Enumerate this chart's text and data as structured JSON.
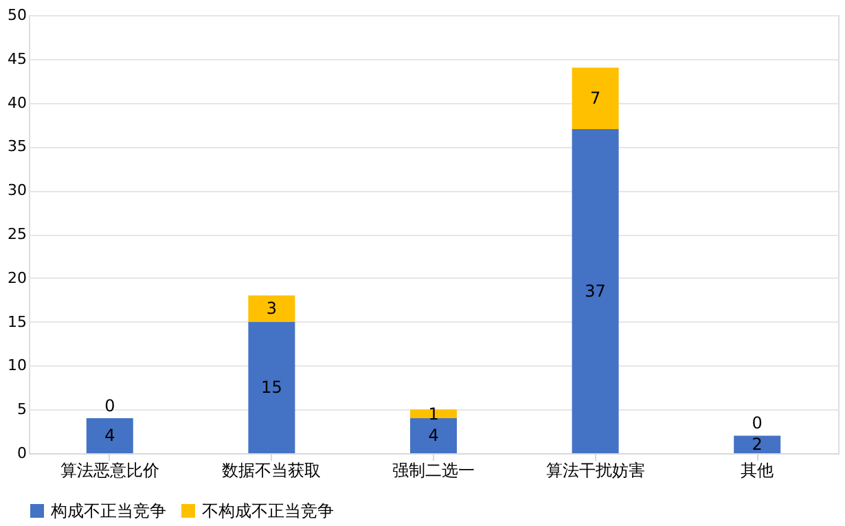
{
  "chart_data": {
    "type": "bar",
    "stacked": true,
    "categories": [
      "算法恶意比价",
      "数据不当获取",
      "强制二选一",
      "算法干扰妨害",
      "其他"
    ],
    "series": [
      {
        "name": "构成不正当竞争",
        "color": "#4472c4",
        "values": [
          4,
          15,
          4,
          37,
          2
        ]
      },
      {
        "name": "不构成不正当竞争",
        "color": "#ffc000",
        "values": [
          0,
          3,
          1,
          7,
          0
        ]
      }
    ],
    "ylim": [
      0,
      50
    ],
    "yticks": [
      0,
      5,
      10,
      15,
      20,
      25,
      30,
      35,
      40,
      45,
      50
    ],
    "grid": "y",
    "legend": "bottom",
    "data_labels": true
  }
}
